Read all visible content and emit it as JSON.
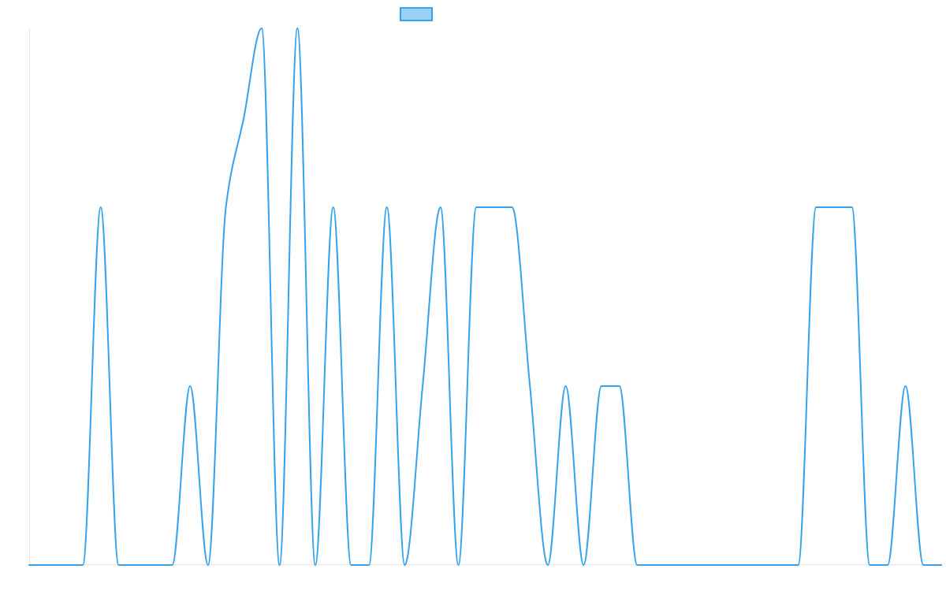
{
  "chart_data": {
    "type": "line",
    "title": "",
    "xlabel": "",
    "ylabel": "",
    "legend": {
      "position": "top"
    },
    "grid": false,
    "x": [
      0,
      1,
      2,
      3,
      4,
      5,
      6,
      7,
      8,
      9,
      10,
      11,
      12,
      13,
      14,
      15,
      16,
      17,
      18,
      19,
      20,
      21,
      22,
      23,
      24,
      25,
      26,
      27,
      28,
      29,
      30,
      31,
      32,
      33,
      34,
      35,
      36,
      37,
      38,
      39,
      40,
      41,
      42,
      43,
      44,
      45,
      46,
      47,
      48,
      49,
      50,
      51
    ],
    "ylim": [
      0,
      3
    ],
    "series": [
      {
        "name": "",
        "color": "#36a2eb",
        "fill": "#9bd0f5",
        "smooth": true,
        "values": [
          0,
          0,
          0,
          0,
          2,
          0,
          0,
          0,
          0,
          1,
          0,
          2,
          2.5,
          3,
          0,
          3,
          0,
          2,
          0,
          0,
          2,
          0,
          1,
          2,
          0,
          2,
          2,
          2,
          1,
          0,
          1,
          0,
          1,
          1,
          0,
          0,
          0,
          0,
          0,
          0,
          0,
          0,
          0,
          0,
          2,
          2,
          2,
          0,
          0,
          1,
          0,
          0
        ]
      }
    ]
  }
}
